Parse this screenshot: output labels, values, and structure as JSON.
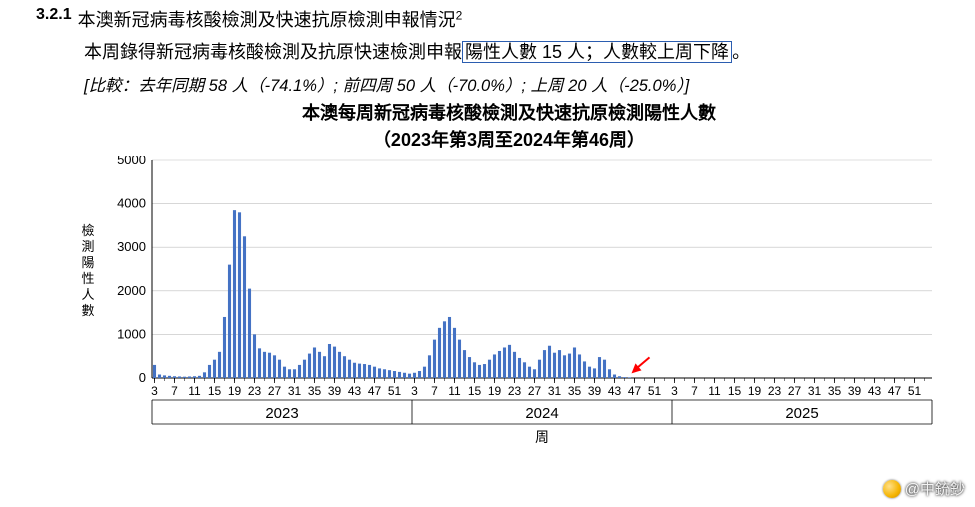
{
  "section": {
    "number": "3.2.1",
    "title_pre": "本澳新冠病毒核酸檢測及快速抗原檢測申報情況",
    "footnote_mark": "2"
  },
  "body": {
    "line_pre": "本周錄得新冠病毒核酸檢測及抗原快速檢測申報",
    "boxed_pre": "陽性人數 ",
    "boxed_num": "15",
    "boxed_post": " 人；人數較上周下降",
    "line_tail": "。"
  },
  "compare": {
    "open": "[比較：去年同期 ",
    "ly_n": "58",
    "ly_pct": " 人（-74.1%）; 前四周 ",
    "p4_n": "50",
    "p4_pct": " 人（-70.0%）; 上周 ",
    "lw_n": "20",
    "lw_pct": " 人（-25.0%）]"
  },
  "chart": {
    "title_line1": "本澳每周新冠病毒核酸檢測及快速抗原檢測陽性人數",
    "title_line2": "（2023年第3周至2024年第46周）",
    "type": "bar",
    "y_axis": {
      "label": "檢測陽性人數",
      "ticks": [
        0,
        1000,
        2000,
        3000,
        4000,
        5000
      ],
      "ylim": [
        0,
        5000
      ],
      "label_fontsize": 13,
      "tick_fontsize": 13
    },
    "x_axis": {
      "label": "周",
      "label_fontsize": 14,
      "tick_labels": [
        "3",
        "7",
        "11",
        "15",
        "19",
        "23",
        "27",
        "31",
        "35",
        "39",
        "43",
        "47",
        "51",
        "3",
        "7",
        "11",
        "15",
        "19",
        "23",
        "27",
        "31",
        "35",
        "39",
        "43",
        "47",
        "51",
        "3",
        "7",
        "11",
        "15",
        "19",
        "23",
        "27",
        "31",
        "35",
        "39",
        "43",
        "47",
        "51"
      ],
      "tick_fontsize": 12,
      "year_labels": [
        "2023",
        "2024",
        "2025"
      ],
      "year_fontsize": 15
    },
    "bar_color": "#4472c4",
    "grid_color": "#bfbfbf",
    "axis_color": "#000000",
    "background_color": "#ffffff",
    "bar_width_ratio": 0.62,
    "arrow": {
      "color": "#ff0000",
      "target_week_index": 95
    },
    "values": [
      300,
      80,
      60,
      50,
      40,
      35,
      30,
      35,
      40,
      50,
      130,
      300,
      420,
      600,
      1400,
      2600,
      3850,
      3800,
      3250,
      2050,
      1000,
      680,
      600,
      580,
      520,
      420,
      260,
      200,
      200,
      300,
      420,
      560,
      700,
      600,
      500,
      780,
      720,
      600,
      500,
      420,
      350,
      330,
      320,
      300,
      260,
      220,
      200,
      180,
      160,
      140,
      120,
      100,
      120,
      160,
      260,
      520,
      880,
      1150,
      1300,
      1400,
      1150,
      880,
      640,
      480,
      360,
      300,
      320,
      420,
      540,
      620,
      700,
      760,
      600,
      460,
      360,
      260,
      200,
      420,
      640,
      740,
      580,
      640,
      520,
      560,
      700,
      540,
      380,
      260,
      220,
      480,
      420,
      200,
      80,
      40,
      20,
      15
    ]
  },
  "watermark": {
    "text": "@中銃鈔"
  }
}
